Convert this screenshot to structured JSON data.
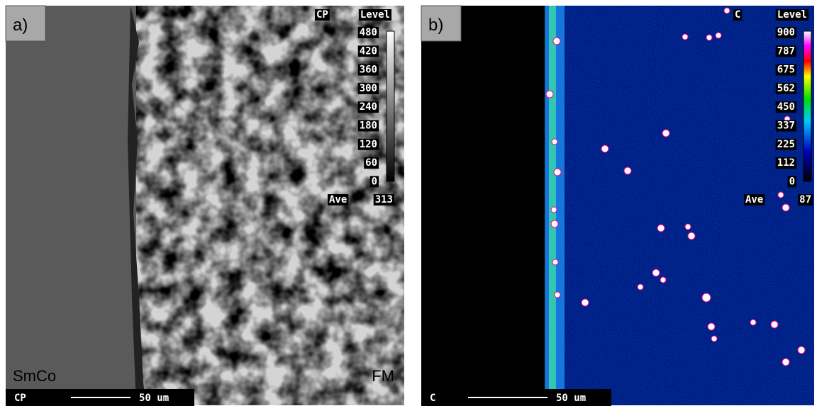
{
  "panels": [
    {
      "tag": "a)",
      "element": "CP",
      "level_title": "Level",
      "levels": [
        480,
        420,
        360,
        300,
        240,
        180,
        120,
        60,
        0
      ],
      "ave_label": "Ave",
      "ave_value": 313,
      "region_labels": [
        "SmCo",
        "FM"
      ],
      "scale_element": "CP",
      "scale_text": "50 um"
    },
    {
      "tag": "b)",
      "element": "C",
      "level_title": "Level",
      "levels": [
        900,
        787,
        675,
        562,
        450,
        337,
        225,
        112,
        0
      ],
      "ave_label": "Ave",
      "ave_value": 87,
      "scale_element": "C",
      "scale_text": "50 um"
    }
  ]
}
